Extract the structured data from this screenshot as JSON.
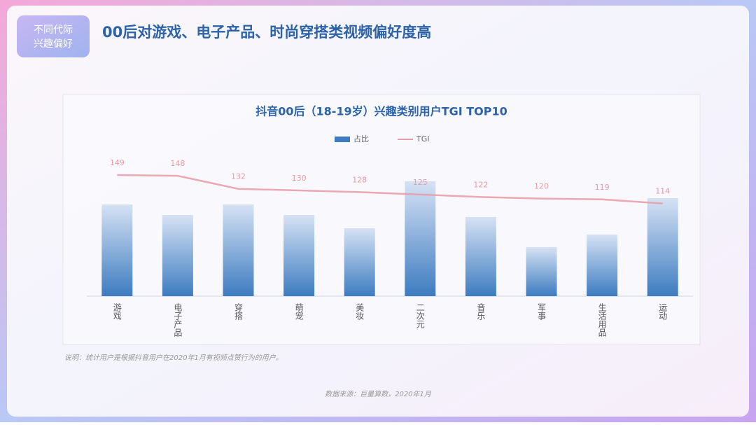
{
  "header": {
    "badge": [
      "不同代际",
      "兴趣偏好"
    ],
    "title": "00后对游戏、电子产品、时尚穿搭类视频偏好度高"
  },
  "chart_data": {
    "type": "bar",
    "title": "抖音00后（18-19岁）兴趣类别用户TGI TOP10",
    "categories": [
      "游戏",
      "电子产品",
      "穿搭",
      "萌宠",
      "美妆",
      "二次元",
      "音乐",
      "军事",
      "生活用品",
      "运动"
    ],
    "series": [
      {
        "name": "占比",
        "type": "bar",
        "color": "#3d7cc0",
        "values": [
          13.1,
          11.6,
          13.1,
          11.6,
          9.7,
          16.4,
          11.3,
          7.0,
          8.8,
          14.0
        ]
      },
      {
        "name": "TGI",
        "type": "line",
        "axis": "y2",
        "color": "#e89aa6",
        "values": [
          149,
          148,
          132,
          130,
          128,
          125,
          122,
          120,
          119,
          114
        ]
      }
    ],
    "ylim": [
      0,
      18
    ],
    "y2lim": [
      0,
      155
    ],
    "legend": "top"
  },
  "footer": {
    "note": "说明：统计用户是根据抖音用户在2020年1月有视频点赞行为的用户。",
    "source": "数据来源：巨量算数，2020年1月"
  }
}
